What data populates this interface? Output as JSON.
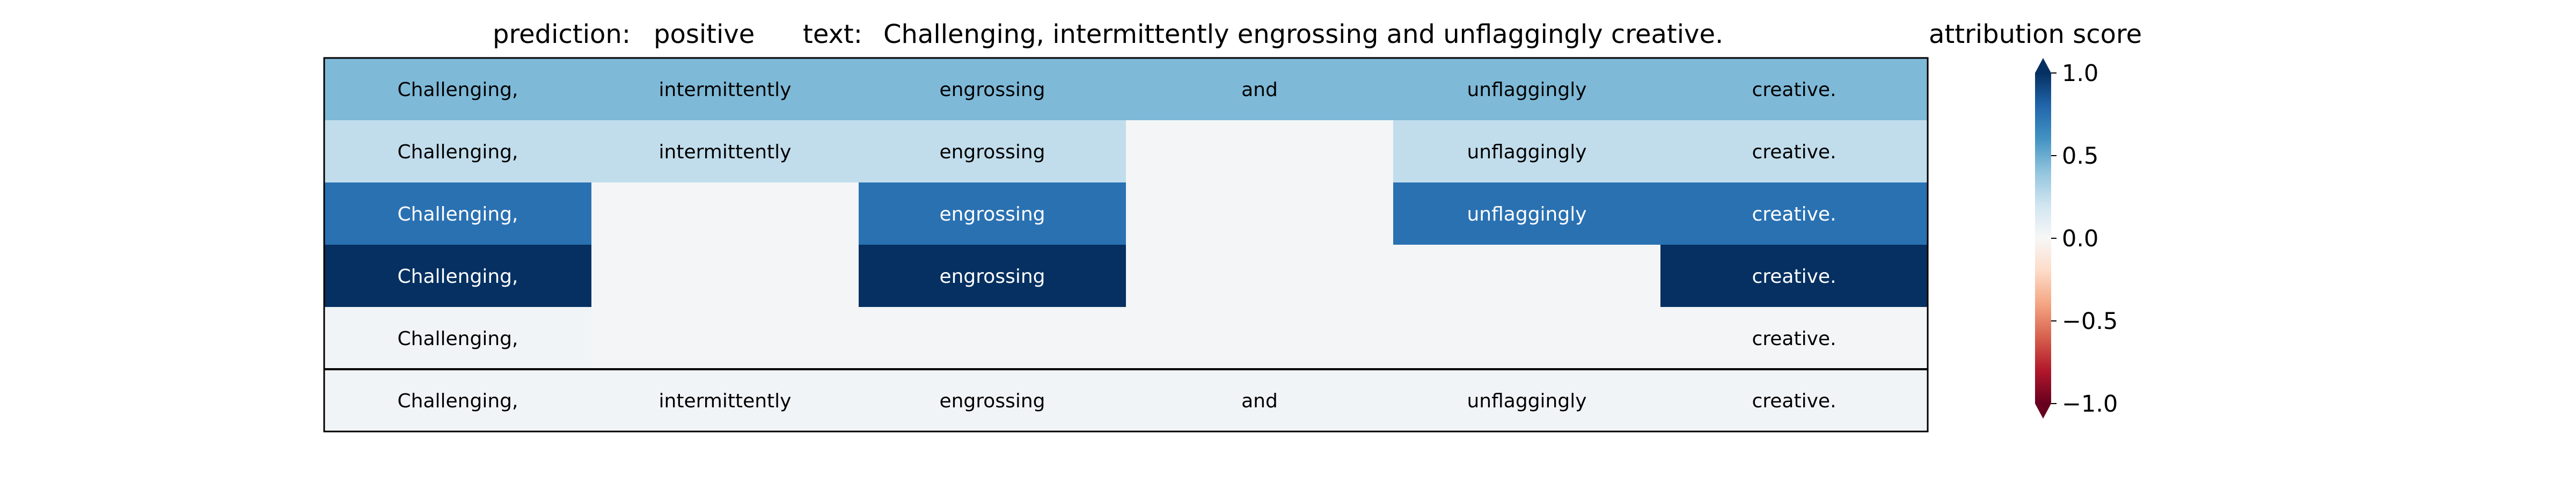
{
  "header": {
    "prediction_label": "prediction:",
    "prediction_value": "positive",
    "text_label": "text:",
    "text_value": "Challenging, intermittently engrossing and unflaggingly creative."
  },
  "chart_data": {
    "type": "heatmap",
    "tokens": [
      "Challenging,",
      "intermittently",
      "engrossing",
      "and",
      "unflaggingly",
      "creative."
    ],
    "rows": [
      {
        "present": [
          true,
          true,
          true,
          true,
          true,
          true
        ],
        "values": [
          0.45,
          0.45,
          0.45,
          0.45,
          0.45,
          0.45
        ]
      },
      {
        "present": [
          true,
          true,
          true,
          false,
          true,
          true
        ],
        "values": [
          0.25,
          0.25,
          0.25,
          0.02,
          0.25,
          0.25
        ]
      },
      {
        "present": [
          true,
          false,
          true,
          false,
          true,
          true
        ],
        "values": [
          0.75,
          0.02,
          0.75,
          0.02,
          0.75,
          0.75
        ]
      },
      {
        "present": [
          true,
          false,
          true,
          false,
          false,
          true
        ],
        "values": [
          1.0,
          0.02,
          1.0,
          0.02,
          0.02,
          1.0
        ]
      },
      {
        "present": [
          true,
          false,
          false,
          false,
          false,
          true
        ],
        "values": [
          0.03,
          0.02,
          0.02,
          0.02,
          0.02,
          0.02
        ]
      },
      {
        "present": [
          true,
          true,
          true,
          true,
          true,
          true
        ],
        "values": [
          0.03,
          0.03,
          0.03,
          0.03,
          0.03,
          0.03
        ]
      }
    ],
    "colorbar": {
      "title": "attribution score",
      "colormap": "RdBu",
      "range": [
        -1.0,
        1.0
      ],
      "ticks": [
        1.0,
        0.5,
        0.0,
        -0.5,
        -1.0
      ],
      "tick_labels": [
        "1.0",
        "0.5",
        "0.0",
        "−0.5",
        "−1.0"
      ]
    },
    "separator_before_last_row": true
  }
}
